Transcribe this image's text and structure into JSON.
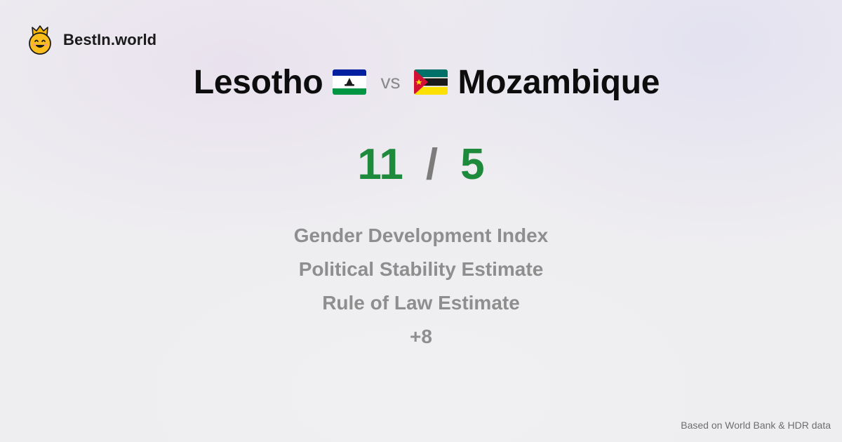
{
  "brand": {
    "name": "BestIn.world",
    "icon": "crowned-smiley-icon"
  },
  "comparison": {
    "left_country": "Lesotho",
    "left_flag": "lesotho-flag-icon",
    "vs_label": "vs",
    "right_country": "Mozambique",
    "right_flag": "mozambique-flag-icon"
  },
  "score": {
    "left": "11",
    "separator": "/",
    "right": "5",
    "color": "#1d8a3c"
  },
  "metrics": [
    "Gender Development Index",
    "Political Stability Estimate",
    "Rule of Law Estimate",
    "+8"
  ],
  "footer": {
    "source_note": "Based on World Bank & HDR data"
  }
}
